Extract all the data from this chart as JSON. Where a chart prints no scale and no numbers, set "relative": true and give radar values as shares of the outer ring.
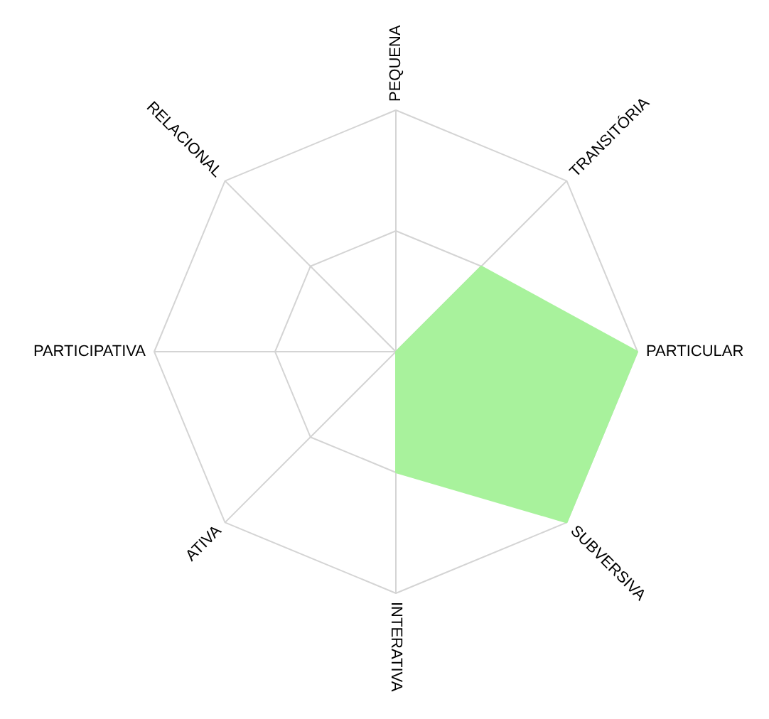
{
  "chart_data": {
    "type": "radar",
    "relative": true,
    "grid": true,
    "categories": [
      "PEQUENA",
      "TRANSITÓRIA",
      "PARTICULAR",
      "SUBVERSIVA",
      "INTERATIVA",
      "ATIVA",
      "PARTICIPATIVA",
      "RELACIONAL"
    ],
    "series": [
      {
        "color": "#a8f29c",
        "values": [
          0,
          0.5,
          1,
          1,
          0.5,
          0,
          0,
          0
        ]
      }
    ]
  }
}
